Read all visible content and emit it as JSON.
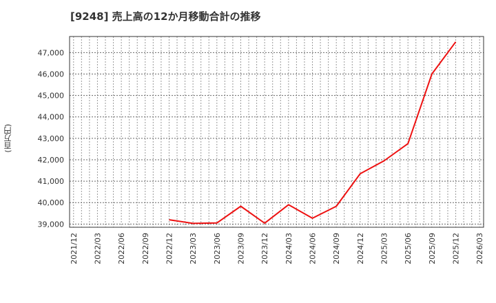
{
  "title": "[9248]  売上高の12か月移動合計の推移",
  "y_axis_label": "(百万円)",
  "colors": {
    "line": "#ee1111",
    "grid": "#999999",
    "axis": "#333333"
  },
  "chart_data": {
    "type": "line",
    "title": "[9248]  売上高の12か月移動合計の推移",
    "xlabel": "",
    "ylabel": "(百万円)",
    "ylim": [
      38850,
      47750
    ],
    "grid": true,
    "legend": "none",
    "y_ticks": [
      39000,
      40000,
      41000,
      42000,
      43000,
      44000,
      45000,
      46000,
      47000
    ],
    "y_tick_labels": [
      "39,000",
      "40,000",
      "41,000",
      "42,000",
      "43,000",
      "44,000",
      "45,000",
      "46,000",
      "47,000"
    ],
    "x_tick_labels": [
      "2021/12",
      "2022/03",
      "2022/06",
      "2022/09",
      "2022/12",
      "2023/03",
      "2023/06",
      "2023/09",
      "2023/12",
      "2024/03",
      "2024/06",
      "2024/09",
      "2024/12",
      "2025/03",
      "2025/06",
      "2025/09",
      "2025/12",
      "2026/03"
    ],
    "series": [
      {
        "name": "売上高12か月移動合計",
        "x": [
          "2022/12",
          "2023/03",
          "2023/06",
          "2023/09",
          "2023/12",
          "2024/03",
          "2024/06",
          "2024/09",
          "2024/12",
          "2025/03",
          "2025/06",
          "2025/09",
          "2025/12"
        ],
        "values": [
          39200,
          39030,
          39050,
          39830,
          39040,
          39900,
          39270,
          39830,
          41350,
          41950,
          42750,
          46000,
          47500
        ]
      }
    ]
  }
}
